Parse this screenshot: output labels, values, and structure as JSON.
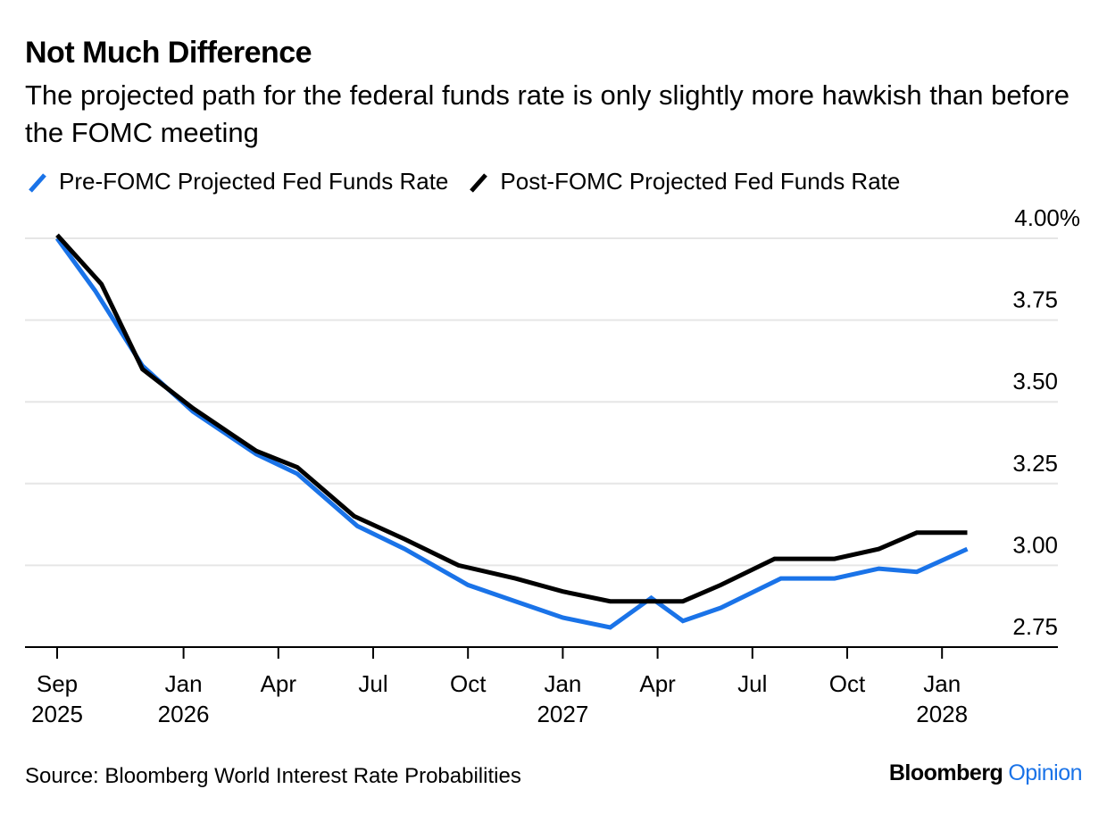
{
  "chart_data": {
    "type": "line",
    "title": "Not Much Difference",
    "subtitle": "The projected path for the federal funds rate is only slightly more hawkish than before the FOMC meeting",
    "source": "Source: Bloomberg World Interest Rate Probabilities",
    "brand": {
      "primary": "Bloomberg",
      "secondary": "Opinion"
    },
    "ylim": [
      2.7,
      4.05
    ],
    "y_ticks": [
      {
        "value": 4.0,
        "label": "4.00%"
      },
      {
        "value": 3.75,
        "label": "3.75"
      },
      {
        "value": 3.5,
        "label": "3.50"
      },
      {
        "value": 3.25,
        "label": "3.25"
      },
      {
        "value": 3.0,
        "label": "3.00"
      },
      {
        "value": 2.75,
        "label": "2.75"
      }
    ],
    "x_ticks": [
      {
        "label": "Sep",
        "year": "2025",
        "index": 0
      },
      {
        "label": "Jan",
        "year": "2026",
        "index": 4
      },
      {
        "label": "Apr",
        "year": "",
        "index": 7
      },
      {
        "label": "Jul",
        "year": "",
        "index": 10
      },
      {
        "label": "Oct",
        "year": "",
        "index": 13
      },
      {
        "label": "Jan",
        "year": "2027",
        "index": 16
      },
      {
        "label": "Apr",
        "year": "",
        "index": 19
      },
      {
        "label": "Jul",
        "year": "",
        "index": 22
      },
      {
        "label": "Oct",
        "year": "",
        "index": 25
      },
      {
        "label": "Jan",
        "year": "2028",
        "index": 28
      }
    ],
    "x_count": 29,
    "series": [
      {
        "name": "Pre-FOMC Projected Fed Funds Rate",
        "color": "#1a73e8",
        "points": [
          [
            0,
            4.0
          ],
          [
            1.2,
            3.84
          ],
          [
            2.7,
            3.61
          ],
          [
            4.3,
            3.47
          ],
          [
            6.3,
            3.34
          ],
          [
            7.6,
            3.28
          ],
          [
            9.5,
            3.12
          ],
          [
            11.0,
            3.05
          ],
          [
            13.0,
            2.94
          ],
          [
            14.5,
            2.89
          ],
          [
            16.0,
            2.84
          ],
          [
            17.5,
            2.81
          ],
          [
            18.8,
            2.9
          ],
          [
            19.8,
            2.83
          ],
          [
            21.0,
            2.87
          ],
          [
            22.9,
            2.96
          ],
          [
            24.6,
            2.96
          ],
          [
            26.0,
            2.99
          ],
          [
            27.2,
            2.98
          ],
          [
            28.8,
            3.05
          ]
        ]
      },
      {
        "name": "Post-FOMC Projected Fed Funds Rate",
        "color": "#000000",
        "points": [
          [
            0,
            4.01
          ],
          [
            1.4,
            3.86
          ],
          [
            2.7,
            3.6
          ],
          [
            4.3,
            3.48
          ],
          [
            6.3,
            3.35
          ],
          [
            7.6,
            3.3
          ],
          [
            9.4,
            3.15
          ],
          [
            11.0,
            3.08
          ],
          [
            12.7,
            3.0
          ],
          [
            14.5,
            2.96
          ],
          [
            16.0,
            2.92
          ],
          [
            17.5,
            2.89
          ],
          [
            18.8,
            2.89
          ],
          [
            19.8,
            2.89
          ],
          [
            21.0,
            2.94
          ],
          [
            22.7,
            3.02
          ],
          [
            24.6,
            3.02
          ],
          [
            26.0,
            3.05
          ],
          [
            27.2,
            3.1
          ],
          [
            28.8,
            3.1
          ]
        ]
      }
    ]
  }
}
